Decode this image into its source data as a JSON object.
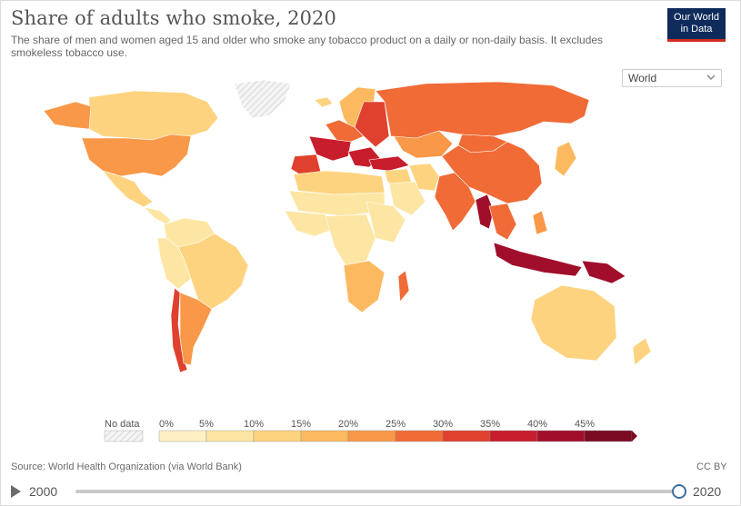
{
  "header": {
    "title": "Share of adults who smoke, 2020",
    "subtitle": "The share of men and women aged 15 and older who smoke any tobacco product on a daily or non-daily basis. It excludes smokeless tobacco use.",
    "logo_line1": "Our World",
    "logo_line2": "in Data",
    "logo_color": "#0f2b5b",
    "logo_accent": "#d42b21"
  },
  "region_selector": {
    "value": "World"
  },
  "legend": {
    "no_data_label": "No data",
    "tick_labels": [
      "0%",
      "5%",
      "10%",
      "15%",
      "20%",
      "25%",
      "30%",
      "35%",
      "40%",
      "45%"
    ],
    "bins": [
      {
        "from": 0,
        "to": 5,
        "color": "#fef0c4"
      },
      {
        "from": 5,
        "to": 10,
        "color": "#fde6a3"
      },
      {
        "from": 10,
        "to": 15,
        "color": "#fdd37f"
      },
      {
        "from": 15,
        "to": 20,
        "color": "#fcb960"
      },
      {
        "from": 20,
        "to": 25,
        "color": "#f99849"
      },
      {
        "from": 25,
        "to": 30,
        "color": "#f06b36"
      },
      {
        "from": 30,
        "to": 35,
        "color": "#e0412e"
      },
      {
        "from": 35,
        "to": 40,
        "color": "#c81d2c"
      },
      {
        "from": 40,
        "to": 45,
        "color": "#a10e2b"
      },
      {
        "from": 45,
        "to": 50,
        "color": "#7a0b22"
      }
    ]
  },
  "map_regions": [
    {
      "id": "canada",
      "bin": 2
    },
    {
      "id": "greenland",
      "bin": -1
    },
    {
      "id": "alaska",
      "bin": 4
    },
    {
      "id": "usa",
      "bin": 4
    },
    {
      "id": "mexico",
      "bin": 2
    },
    {
      "id": "central-america",
      "bin": 1
    },
    {
      "id": "venezuela-colombia",
      "bin": 1
    },
    {
      "id": "brazil",
      "bin": 2
    },
    {
      "id": "peru-bolivia",
      "bin": 1
    },
    {
      "id": "chile",
      "bin": 6
    },
    {
      "id": "argentina",
      "bin": 4
    },
    {
      "id": "iceland",
      "bin": 2
    },
    {
      "id": "scandinavia",
      "bin": 3
    },
    {
      "id": "western-europe",
      "bin": 5
    },
    {
      "id": "france",
      "bin": 7
    },
    {
      "id": "iberia",
      "bin": 6
    },
    {
      "id": "eastern-europe",
      "bin": 6
    },
    {
      "id": "balkans",
      "bin": 7
    },
    {
      "id": "turkey",
      "bin": 7
    },
    {
      "id": "russia",
      "bin": 5
    },
    {
      "id": "kazakhstan",
      "bin": 4
    },
    {
      "id": "mongolia",
      "bin": 5
    },
    {
      "id": "china",
      "bin": 5
    },
    {
      "id": "india",
      "bin": 5
    },
    {
      "id": "middle-east",
      "bin": 2
    },
    {
      "id": "saudi-arabia",
      "bin": 1
    },
    {
      "id": "iran",
      "bin": 2
    },
    {
      "id": "north-africa",
      "bin": 2
    },
    {
      "id": "sahara",
      "bin": 1
    },
    {
      "id": "west-africa",
      "bin": 1
    },
    {
      "id": "central-africa",
      "bin": 1
    },
    {
      "id": "east-africa",
      "bin": 1
    },
    {
      "id": "southern-africa",
      "bin": 3
    },
    {
      "id": "madagascar",
      "bin": 5
    },
    {
      "id": "myanmar",
      "bin": 8
    },
    {
      "id": "indochina",
      "bin": 5
    },
    {
      "id": "indonesia",
      "bin": 8
    },
    {
      "id": "papua",
      "bin": 8
    },
    {
      "id": "philippines",
      "bin": 4
    },
    {
      "id": "japan",
      "bin": 3
    },
    {
      "id": "australia",
      "bin": 2
    },
    {
      "id": "new-zealand",
      "bin": 2
    }
  ],
  "footer": {
    "source": "Source: World Health Organization (via World Bank)",
    "license": "CC BY"
  },
  "timeline": {
    "start_year": "2000",
    "end_year": "2020",
    "selected_year": 2020
  }
}
